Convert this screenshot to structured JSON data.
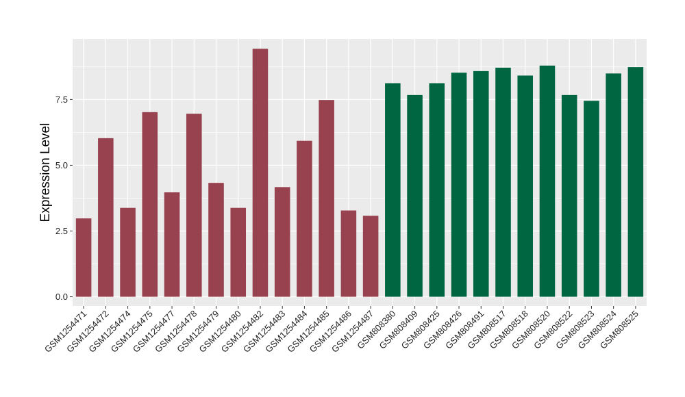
{
  "chart_data": {
    "type": "bar",
    "title": "",
    "xlabel": "",
    "ylabel": "Expression Level",
    "ylim": [
      -0.35,
      9.8
    ],
    "yticks": [
      0.0,
      2.5,
      5.0,
      7.5
    ],
    "ytick_labels": [
      "0.0",
      "2.5",
      "5.0",
      "7.5"
    ],
    "grid": true,
    "legend": "none",
    "categories": [
      "GSM1254471",
      "GSM1254472",
      "GSM1254474",
      "GSM1254475",
      "GSM1254477",
      "GSM1254478",
      "GSM1254479",
      "GSM1254480",
      "GSM1254482",
      "GSM1254483",
      "GSM1254484",
      "GSM1254485",
      "GSM1254486",
      "GSM1254487",
      "GSM808380",
      "GSM808409",
      "GSM808425",
      "GSM808426",
      "GSM808491",
      "GSM808517",
      "GSM808518",
      "GSM808520",
      "GSM808522",
      "GSM808523",
      "GSM808524",
      "GSM808525"
    ],
    "values": [
      2.98,
      6.03,
      3.38,
      7.02,
      3.97,
      6.96,
      4.33,
      3.38,
      9.43,
      4.17,
      5.93,
      7.48,
      3.28,
      3.08,
      8.12,
      7.67,
      8.12,
      8.52,
      8.58,
      8.71,
      8.41,
      8.79,
      7.67,
      7.45,
      8.49,
      8.73
    ],
    "bar_colors": [
      "#99424f",
      "#99424f",
      "#99424f",
      "#99424f",
      "#99424f",
      "#99424f",
      "#99424f",
      "#99424f",
      "#99424f",
      "#99424f",
      "#99424f",
      "#99424f",
      "#99424f",
      "#99424f",
      "#006642",
      "#006642",
      "#006642",
      "#006642",
      "#006642",
      "#006642",
      "#006642",
      "#006642",
      "#006642",
      "#006642",
      "#006642",
      "#006642"
    ],
    "panel_background": "#ebebeb",
    "grid_color": "#ffffff"
  }
}
